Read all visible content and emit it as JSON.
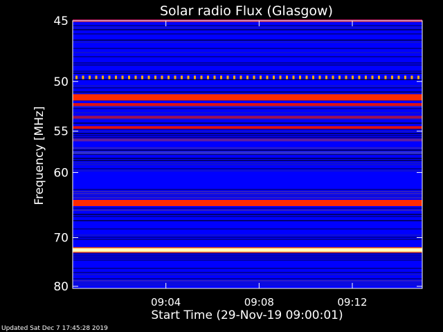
{
  "chart_data": {
    "type": "heatmap",
    "title": "Solar radio Flux (Glasgow)",
    "ylabel": "Frequency [MHz]",
    "xlabel": "Start Time (29-Nov-19 09:00:01)",
    "footer": "Updated Sat Dec  7 17:45:28 2019",
    "y_unit": "MHz",
    "y_axis_scale": "reciprocal",
    "y_range": [
      45,
      80
    ],
    "y_ticks": [
      {
        "value": 45,
        "label": "45"
      },
      {
        "value": 50,
        "label": "50"
      },
      {
        "value": 55,
        "label": "55"
      },
      {
        "value": 60,
        "label": "60"
      },
      {
        "value": 70,
        "label": "70"
      },
      {
        "value": 80,
        "label": "80"
      }
    ],
    "x_range_minutes": [
      0,
      15
    ],
    "x_ticks": [
      {
        "value": 4,
        "label": "09:04"
      },
      {
        "value": 8,
        "label": "09:08"
      },
      {
        "value": 12,
        "label": "09:12"
      }
    ],
    "colors": {
      "background": "#0000ff",
      "low": "#000060",
      "mid": "#b00010",
      "high": "#ff2000",
      "peak": "#ffffc0"
    },
    "bands": [
      {
        "mhz": 45.0,
        "intensity": 0.55
      },
      {
        "mhz": 49.6,
        "intensity": 0.75,
        "dotted": true
      },
      {
        "mhz": 51.5,
        "intensity": 0.85
      },
      {
        "mhz": 52.2,
        "intensity": 0.7
      },
      {
        "mhz": 53.5,
        "intensity": 0.45
      },
      {
        "mhz": 54.6,
        "intensity": 0.7
      },
      {
        "mhz": 56.0,
        "intensity": 0.3
      },
      {
        "mhz": 57.5,
        "intensity": 0.2
      },
      {
        "mhz": 64.3,
        "intensity": 0.8
      },
      {
        "mhz": 72.3,
        "intensity": 1.0
      }
    ]
  }
}
